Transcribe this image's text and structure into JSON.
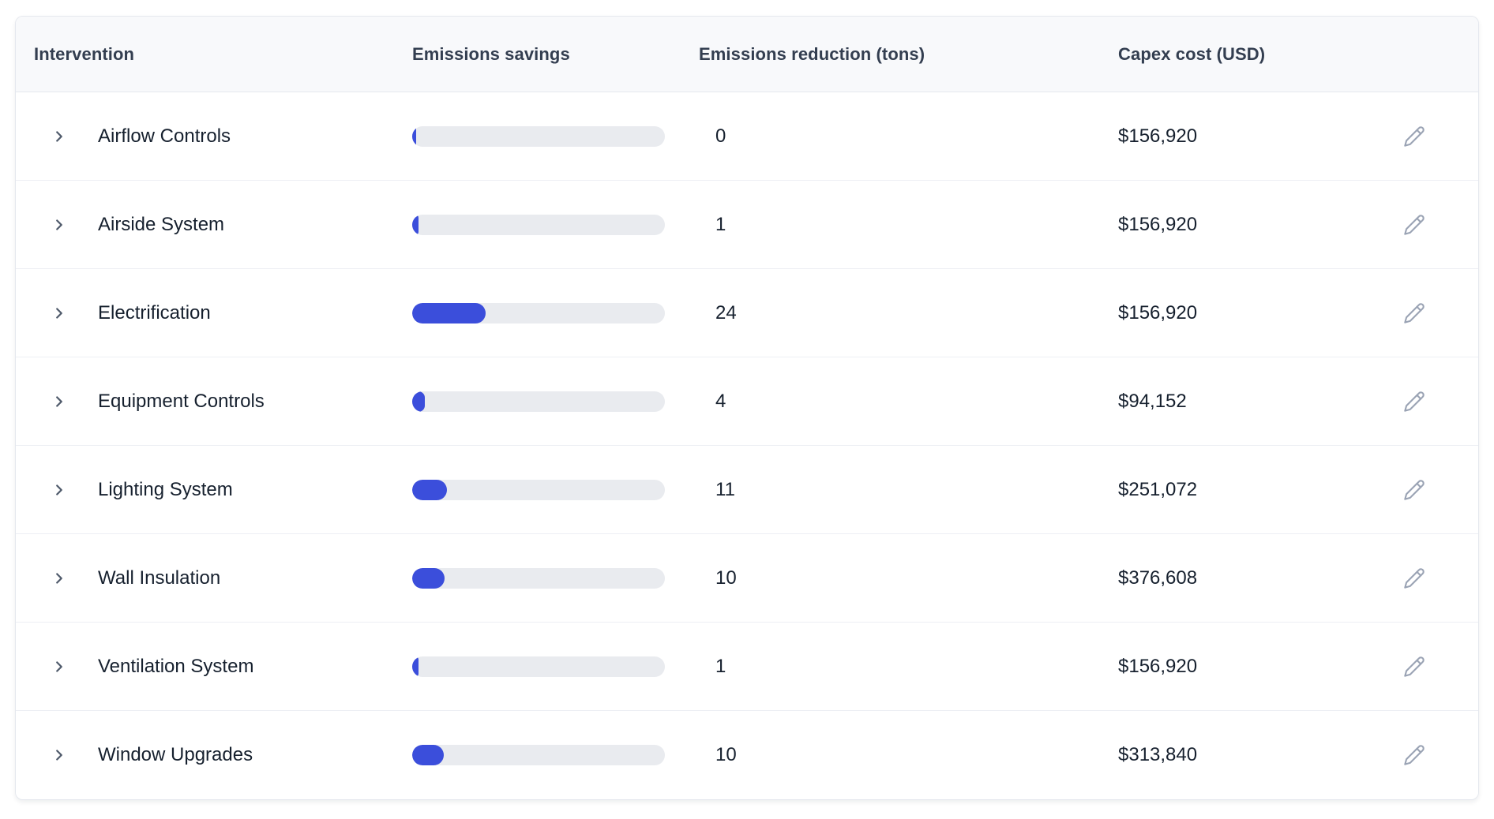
{
  "table": {
    "columns": [
      {
        "label": "Intervention"
      },
      {
        "label": "Emissions savings"
      },
      {
        "label": "Emissions reduction (tons)"
      },
      {
        "label": "Capex cost (USD)"
      }
    ],
    "rows": [
      {
        "name": "Airflow Controls",
        "bar_percent": 1.5,
        "reduction": "0",
        "capex": "$156,920"
      },
      {
        "name": "Airside System",
        "bar_percent": 2.5,
        "reduction": "1",
        "capex": "$156,920"
      },
      {
        "name": "Electrification",
        "bar_percent": 29,
        "reduction": "24",
        "capex": "$156,920"
      },
      {
        "name": "Equipment Controls",
        "bar_percent": 5,
        "reduction": "4",
        "capex": "$94,152"
      },
      {
        "name": "Lighting System",
        "bar_percent": 13.8,
        "reduction": "11",
        "capex": "$251,072"
      },
      {
        "name": "Wall Insulation",
        "bar_percent": 12.8,
        "reduction": "10",
        "capex": "$376,608"
      },
      {
        "name": "Ventilation System",
        "bar_percent": 2.5,
        "reduction": "1",
        "capex": "$156,920"
      },
      {
        "name": "Window Upgrades",
        "bar_percent": 12.5,
        "reduction": "10",
        "capex": "$313,840"
      }
    ],
    "icons": {
      "expand": "chevron-right-icon",
      "edit": "pencil-icon"
    },
    "colors": {
      "bar_fill": "#3b4edb",
      "bar_track": "#e9ebef",
      "header_bg": "#f8f9fb",
      "header_text": "#333e50",
      "row_text": "#16202e",
      "border": "#e5e8ee",
      "chevron": "#4f5a6b",
      "pencil": "#9aa3b4"
    }
  }
}
